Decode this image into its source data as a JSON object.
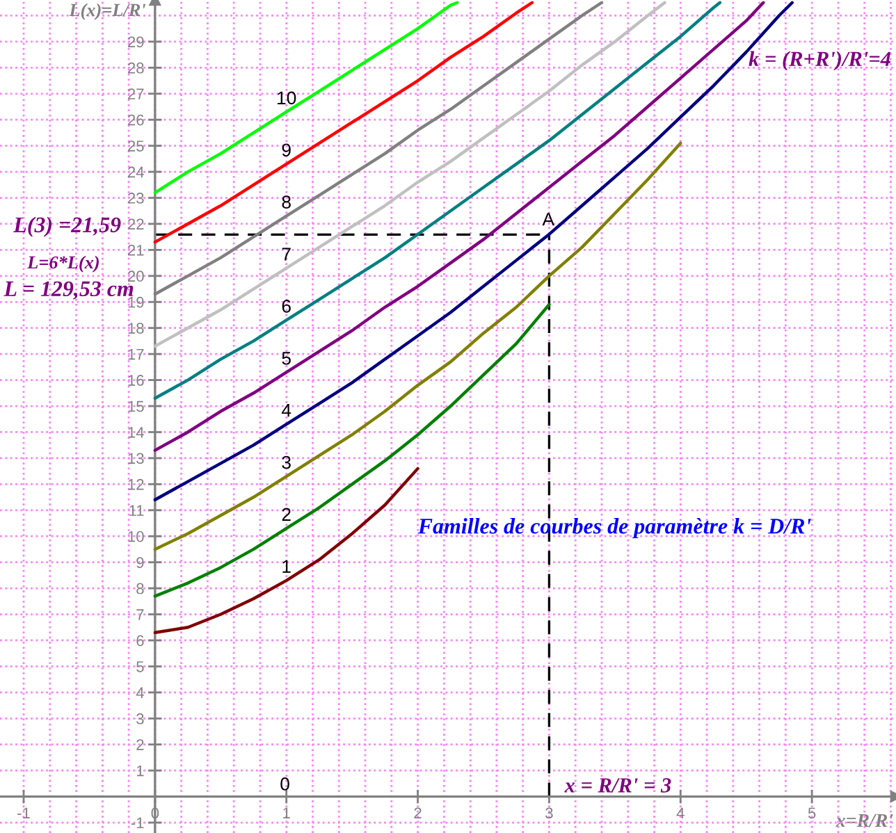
{
  "chart_data": {
    "type": "line",
    "xlabel": "x=R/R'",
    "ylabel": "L(x)=L/R'",
    "xlim": [
      -1.18,
      5.64
    ],
    "ylim": [
      -1.4,
      30.6
    ],
    "xticks": [
      -1,
      {
        "value": -0.8,
        "label": null
      },
      {
        "value": -0.6,
        "label": null
      },
      {
        "value": -0.4,
        "label": null
      },
      {
        "value": -0.2,
        "label": null
      },
      0,
      {
        "value": 0.2,
        "label": null
      },
      {
        "value": 0.4,
        "label": null
      },
      {
        "value": 0.6,
        "label": null
      },
      {
        "value": 0.8,
        "label": null
      },
      1,
      {
        "value": 1.2,
        "label": null
      },
      {
        "value": 1.4,
        "label": null
      },
      {
        "value": 1.6,
        "label": null
      },
      {
        "value": 1.8,
        "label": null
      },
      2,
      {
        "value": 2.2,
        "label": null
      },
      {
        "value": 2.4,
        "label": null
      },
      {
        "value": 2.6,
        "label": null
      },
      {
        "value": 2.8,
        "label": null
      },
      3,
      {
        "value": 3.2,
        "label": null
      },
      {
        "value": 3.4,
        "label": null
      },
      {
        "value": 3.6,
        "label": null
      },
      {
        "value": 3.8,
        "label": null
      },
      4,
      {
        "value": 4.2,
        "label": null
      },
      {
        "value": 4.4,
        "label": null
      },
      {
        "value": 4.6,
        "label": null
      },
      {
        "value": 4.8,
        "label": null
      },
      5,
      {
        "value": 5.2,
        "label": null
      },
      {
        "value": 5.4,
        "label": null
      },
      {
        "value": 5.6,
        "label": null
      }
    ],
    "yticks": [
      -1,
      1,
      2,
      3,
      4,
      5,
      6,
      7,
      8,
      9,
      10,
      11,
      12,
      13,
      14,
      15,
      16,
      17,
      18,
      19,
      20,
      21,
      22,
      23,
      24,
      25,
      26,
      27,
      28,
      29,
      {
        "value": 30,
        "label": null
      }
    ],
    "grid": true,
    "series": [
      {
        "name": "1",
        "color": "#800000",
        "x": [
          0,
          0.25,
          0.5,
          0.75,
          1,
          1.25,
          1.5,
          1.75,
          2
        ],
        "values": [
          6.3,
          6.5,
          7.0,
          7.6,
          8.3,
          9.1,
          10.1,
          11.2,
          12.6
        ]
      },
      {
        "name": "2",
        "color": "#008000",
        "x": [
          0,
          0.25,
          0.5,
          0.75,
          1,
          1.25,
          1.5,
          1.75,
          2,
          2.25,
          2.5,
          2.75,
          3
        ],
        "values": [
          7.7,
          8.2,
          8.8,
          9.5,
          10.3,
          11.1,
          12.0,
          12.9,
          13.9,
          15.0,
          16.2,
          17.4,
          18.9
        ]
      },
      {
        "name": "3",
        "color": "#808000",
        "x": [
          0,
          0.25,
          0.5,
          0.75,
          1,
          1.25,
          1.5,
          1.75,
          2,
          2.25,
          2.5,
          2.75,
          3,
          3.25,
          3.5,
          3.75,
          4
        ],
        "values": [
          9.5,
          10.1,
          10.8,
          11.5,
          12.3,
          13.1,
          13.9,
          14.8,
          15.8,
          16.7,
          17.8,
          18.8,
          20.0,
          21.1,
          22.4,
          23.7,
          25.1
        ]
      },
      {
        "name": "4",
        "color": "#000080",
        "x": [
          0,
          0.25,
          0.5,
          0.75,
          1,
          1.25,
          1.5,
          1.75,
          2,
          2.25,
          2.5,
          2.75,
          3,
          3.25,
          3.5,
          3.75,
          4,
          4.25,
          4.5,
          4.75,
          4.85
        ],
        "values": [
          11.4,
          12.1,
          12.8,
          13.5,
          14.3,
          15.1,
          15.9,
          16.8,
          17.7,
          18.6,
          19.6,
          20.6,
          21.6,
          22.7,
          23.8,
          24.9,
          26.1,
          27.3,
          28.6,
          30.0,
          30.5
        ]
      },
      {
        "name": "5",
        "color": "#800080",
        "x": [
          0,
          0.25,
          0.5,
          0.75,
          1,
          1.25,
          1.5,
          1.75,
          2,
          2.25,
          2.5,
          2.75,
          3,
          3.25,
          3.5,
          3.75,
          4,
          4.25,
          4.5,
          4.63
        ],
        "values": [
          13.3,
          14.0,
          14.8,
          15.5,
          16.3,
          17.1,
          17.9,
          18.8,
          19.6,
          20.5,
          21.4,
          22.4,
          23.4,
          24.4,
          25.4,
          26.5,
          27.6,
          28.7,
          29.8,
          30.5
        ]
      },
      {
        "name": "6",
        "color": "#008080",
        "x": [
          0,
          0.25,
          0.5,
          0.75,
          1,
          1.25,
          1.5,
          1.75,
          2,
          2.25,
          2.5,
          2.75,
          3,
          3.25,
          3.5,
          3.75,
          4,
          4.25,
          4.3
        ],
        "values": [
          15.3,
          16.0,
          16.8,
          17.5,
          18.3,
          19.1,
          19.9,
          20.7,
          21.6,
          22.5,
          23.4,
          24.3,
          25.2,
          26.2,
          27.2,
          28.2,
          29.2,
          30.3,
          30.5
        ]
      },
      {
        "name": "7",
        "color": "#c0c0c0",
        "x": [
          0,
          0.25,
          0.5,
          0.75,
          1,
          1.25,
          1.5,
          1.75,
          2,
          2.25,
          2.5,
          2.75,
          3,
          3.25,
          3.5,
          3.75,
          3.88
        ],
        "values": [
          17.3,
          18.0,
          18.7,
          19.5,
          20.3,
          21.1,
          21.9,
          22.7,
          23.6,
          24.4,
          25.3,
          26.2,
          27.1,
          28.1,
          29.0,
          30.0,
          30.5
        ]
      },
      {
        "name": "8",
        "color": "#808080",
        "x": [
          0,
          0.25,
          0.5,
          0.75,
          1,
          1.25,
          1.5,
          1.75,
          2,
          2.25,
          2.5,
          2.75,
          3,
          3.25,
          3.4
        ],
        "values": [
          19.3,
          20.0,
          20.7,
          21.5,
          22.3,
          23.1,
          23.9,
          24.7,
          25.6,
          26.4,
          27.3,
          28.2,
          29.1,
          30.0,
          30.5
        ]
      },
      {
        "name": "9",
        "color": "#ff0000",
        "x": [
          0,
          0.25,
          0.5,
          0.75,
          1,
          1.25,
          1.5,
          1.75,
          2,
          2.25,
          2.5,
          2.75,
          2.87
        ],
        "values": [
          21.3,
          22.0,
          22.7,
          23.5,
          24.3,
          25.1,
          25.9,
          26.7,
          27.5,
          28.4,
          29.2,
          30.1,
          30.5
        ]
      },
      {
        "name": "10",
        "color": "#00ff00",
        "x": [
          0,
          0.25,
          0.5,
          0.75,
          1,
          1.25,
          1.5,
          1.75,
          2,
          2.25,
          2.3
        ],
        "values": [
          23.2,
          24.0,
          24.7,
          25.5,
          26.3,
          27.1,
          27.9,
          28.7,
          29.5,
          30.4,
          30.5
        ]
      }
    ],
    "ref_lines": [
      {
        "axis": "y",
        "value": 21.59,
        "label": "L(3) =21,59",
        "color": "#000000",
        "line_style": "dashed"
      },
      {
        "axis": "x",
        "value": 3,
        "label": "x = R/R' = 3",
        "color": "#000000",
        "line_style": "dashed"
      }
    ],
    "annotations": [
      "L=6*L(x)",
      "L = 129,53 cm",
      "k = (R+R')/R'=4",
      "Familles de courbes de paramètre k = D/R'",
      "0",
      "A"
    ]
  }
}
